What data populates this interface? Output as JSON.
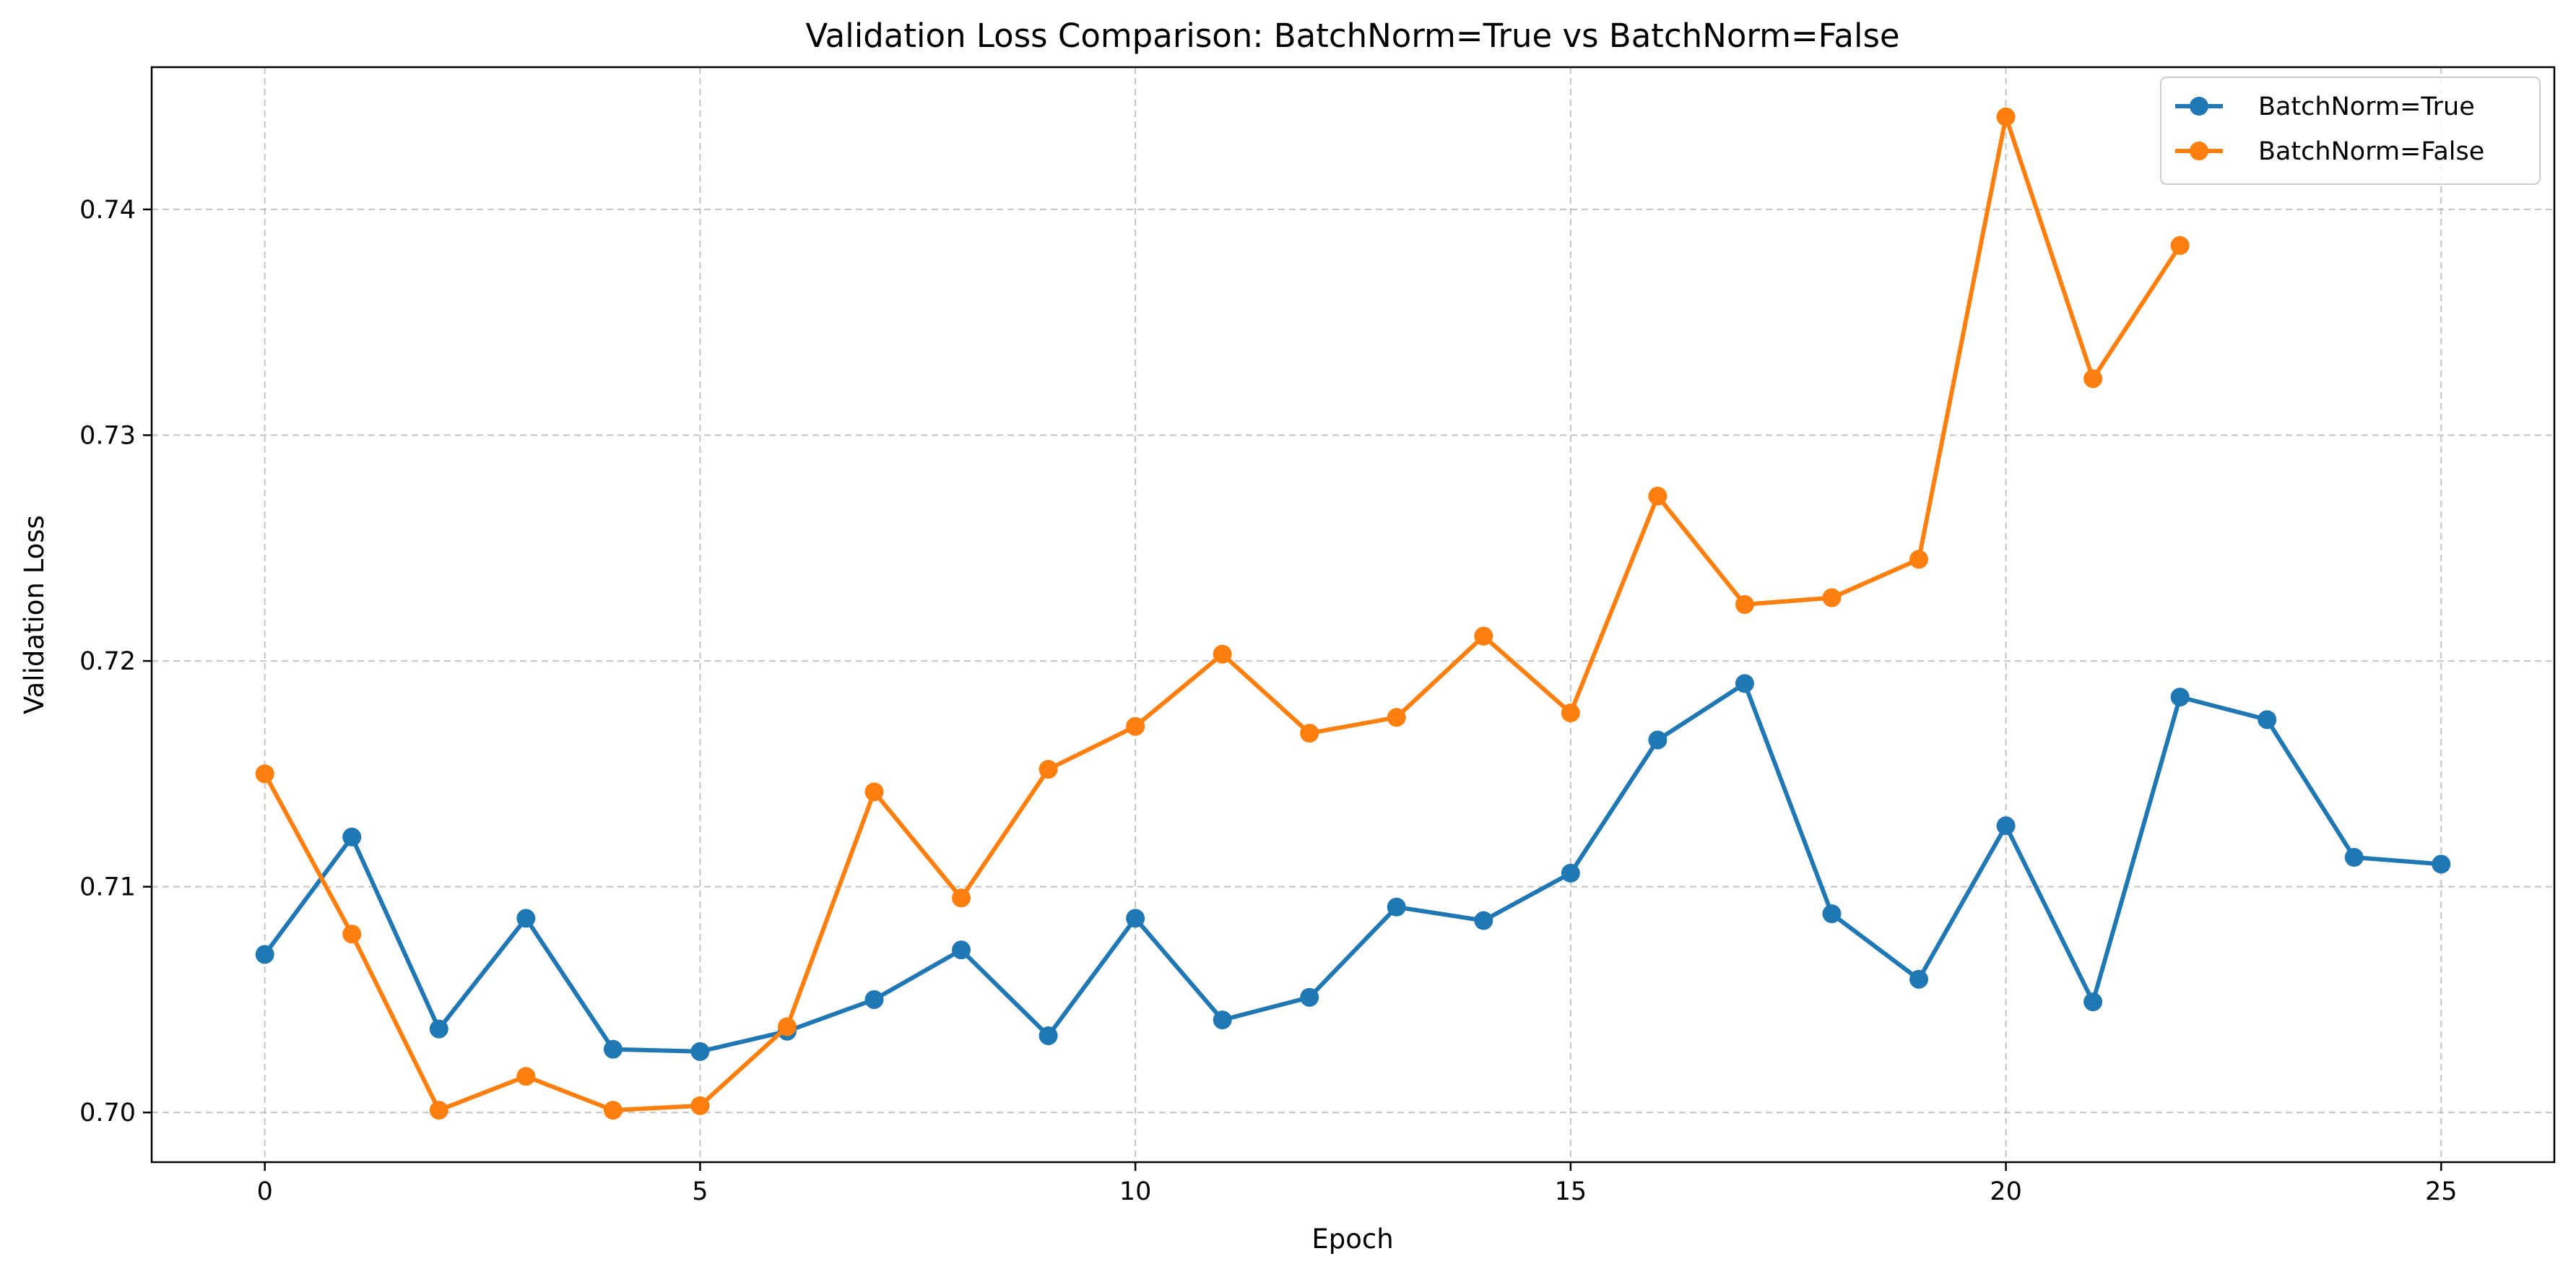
{
  "chart_data": {
    "type": "line",
    "title": "Validation Loss Comparison: BatchNorm=True vs BatchNorm=False",
    "xlabel": "Epoch",
    "ylabel": "Validation Loss",
    "xlim": [
      -1.3,
      26.3
    ],
    "ylim": [
      0.6978,
      0.7463
    ],
    "xticks": [
      0,
      5,
      10,
      15,
      20,
      25
    ],
    "xtick_labels": [
      "0",
      "5",
      "10",
      "15",
      "20",
      "25"
    ],
    "yticks": [
      0.7,
      0.71,
      0.72,
      0.73,
      0.74
    ],
    "ytick_labels": [
      "0.70",
      "0.71",
      "0.72",
      "0.73",
      "0.74"
    ],
    "grid": true,
    "legend_position": "upper right",
    "series": [
      {
        "name": "BatchNorm=True",
        "color": "#1f77b4",
        "x": [
          0,
          1,
          2,
          3,
          4,
          5,
          6,
          7,
          8,
          9,
          10,
          11,
          12,
          13,
          14,
          15,
          16,
          17,
          18,
          19,
          20,
          21,
          22,
          23,
          24,
          25
        ],
        "values": [
          0.707,
          0.7122,
          0.7037,
          0.7086,
          0.7028,
          0.7027,
          0.7036,
          0.705,
          0.7072,
          0.7034,
          0.7086,
          0.7041,
          0.7051,
          0.7091,
          0.7085,
          0.7106,
          0.7165,
          0.719,
          0.7088,
          0.7059,
          0.7127,
          0.7049,
          0.7184,
          0.7174,
          0.7113,
          0.711
        ]
      },
      {
        "name": "BatchNorm=False",
        "color": "#ff7f0e",
        "x": [
          0,
          1,
          2,
          3,
          4,
          5,
          6,
          7,
          8,
          9,
          10,
          11,
          12,
          13,
          14,
          15,
          16,
          17,
          18,
          19,
          20,
          21,
          22
        ],
        "values": [
          0.715,
          0.7079,
          0.7001,
          0.7016,
          0.7001,
          0.7003,
          0.7038,
          0.7142,
          0.7095,
          0.7152,
          0.7171,
          0.7203,
          0.7168,
          0.7175,
          0.7211,
          0.7177,
          0.7273,
          0.7225,
          0.7228,
          0.7245,
          0.7441,
          0.7325,
          0.7384
        ]
      }
    ]
  }
}
